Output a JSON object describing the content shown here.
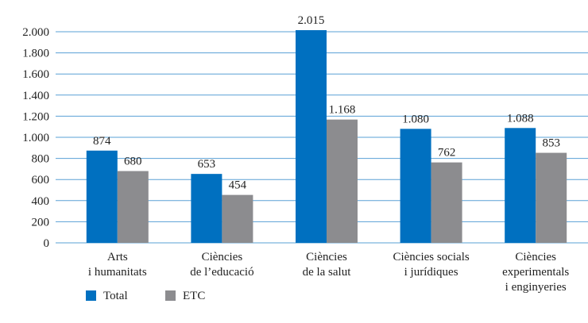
{
  "chart_data": {
    "type": "bar",
    "categories": [
      "Arts\ni humanitats",
      "Ciències\nde l’educació",
      "Ciències\nde la salut",
      "Ciències socials\ni jurídiques",
      "Ciències\nexperimentals\ni enginyeries"
    ],
    "series": [
      {
        "name": "Total",
        "color": "#0070c0",
        "values": [
          874,
          653,
          2015,
          1080,
          1088
        ],
        "value_labels": [
          "874",
          "653",
          "2.015",
          "1.080",
          "1.088"
        ]
      },
      {
        "name": "ETC",
        "color": "#8c8c8f",
        "values": [
          680,
          454,
          1168,
          762,
          853
        ],
        "value_labels": [
          "680",
          "454",
          "1.168",
          "762",
          "853"
        ]
      }
    ],
    "ylim": [
      0,
      2000
    ],
    "yticks": [
      0,
      200,
      400,
      600,
      800,
      {
        "value": 1000,
        "label": "1.000"
      },
      {
        "value": 1200,
        "label": "1.200"
      },
      {
        "value": 1400,
        "label": "1.400"
      },
      {
        "value": 1600,
        "label": "1.600"
      },
      {
        "value": 1800,
        "label": "1.800"
      },
      {
        "value": 2000,
        "label": "2.000"
      }
    ],
    "grid": true,
    "legend": "bottom-left"
  }
}
